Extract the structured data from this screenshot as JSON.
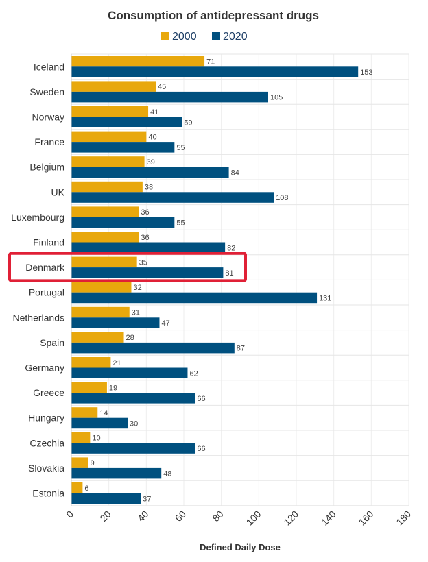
{
  "chart_data": {
    "type": "bar",
    "orientation": "horizontal",
    "title": "Consumption of antidepressant drugs",
    "xlabel": "Defined Daily Dose",
    "ylabel": "",
    "xlim": [
      0,
      180
    ],
    "xticks": [
      0,
      20,
      40,
      60,
      80,
      100,
      120,
      140,
      160,
      180
    ],
    "grid": true,
    "legend_position": "top",
    "categories": [
      "Iceland",
      "Sweden",
      "Norway",
      "France",
      "Belgium",
      "UK",
      "Luxembourg",
      "Finland",
      "Denmark",
      "Portugal",
      "Netherlands",
      "Spain",
      "Germany",
      "Greece",
      "Hungary",
      "Czechia",
      "Slovakia",
      "Estonia"
    ],
    "series": [
      {
        "name": "2000",
        "color": "#e8a80d",
        "values": [
          71,
          45,
          41,
          40,
          39,
          38,
          36,
          36,
          35,
          32,
          31,
          28,
          21,
          19,
          14,
          10,
          9,
          6
        ]
      },
      {
        "name": "2020",
        "color": "#00507f",
        "values": [
          153,
          105,
          59,
          55,
          84,
          108,
          55,
          82,
          81,
          131,
          47,
          87,
          62,
          66,
          30,
          66,
          48,
          37
        ]
      }
    ],
    "highlight": {
      "category": "Denmark",
      "color": "#e02036"
    }
  }
}
